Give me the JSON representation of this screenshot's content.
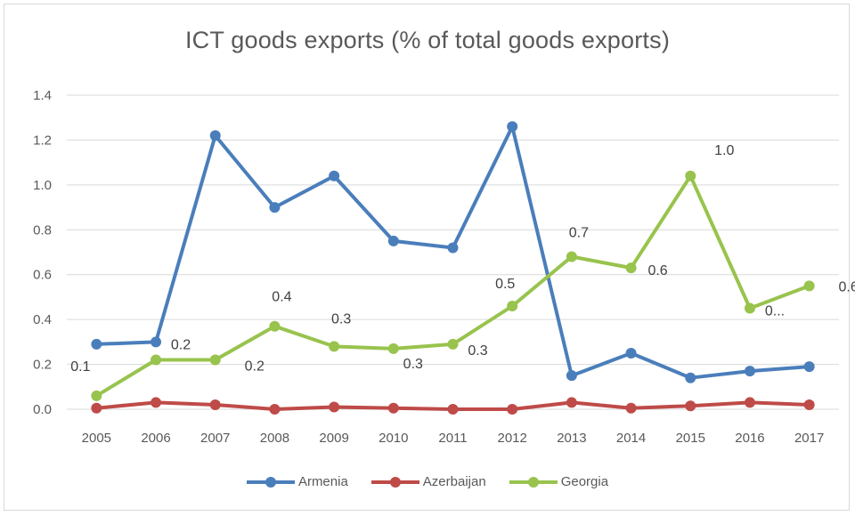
{
  "chart_data": {
    "type": "line",
    "title": "ICT goods exports (% of total goods exports)",
    "xlabel": "",
    "ylabel": "",
    "categories": [
      "2005",
      "2006",
      "2007",
      "2008",
      "2009",
      "2010",
      "2011",
      "2012",
      "2013",
      "2014",
      "2015",
      "2016",
      "2017"
    ],
    "ylim": [
      0,
      1.4
    ],
    "yticks": [
      "0.0",
      "0.2",
      "0.4",
      "0.6",
      "0.8",
      "1.0",
      "1.2",
      "1.4"
    ],
    "grid": true,
    "legend_position": "bottom",
    "series": [
      {
        "name": "Armenia",
        "color": "#4a7ebb",
        "values": [
          0.29,
          0.3,
          1.22,
          0.9,
          1.04,
          0.75,
          0.72,
          1.26,
          0.15,
          0.25,
          0.14,
          0.17,
          0.19
        ],
        "labels": [
          "",
          "",
          "",
          "",
          "",
          "",
          "",
          "",
          "",
          "",
          "",
          "",
          ""
        ]
      },
      {
        "name": "Azerbaijan",
        "color": "#be4b48",
        "values": [
          0.005,
          0.03,
          0.02,
          0.0,
          0.01,
          0.005,
          0.0,
          0.0,
          0.03,
          0.005,
          0.015,
          0.03,
          0.02
        ],
        "labels": [
          "",
          "",
          "",
          "",
          "",
          "",
          "",
          "",
          "",
          "",
          "",
          "",
          ""
        ]
      },
      {
        "name": "Georgia",
        "color": "#98c34d",
        "values": [
          0.06,
          0.22,
          0.22,
          0.37,
          0.28,
          0.27,
          0.29,
          0.46,
          0.68,
          0.63,
          1.04,
          0.45,
          0.55
        ],
        "labels": [
          "0.1",
          "0.2",
          "0.2",
          "0.4",
          "0.3",
          "0.3",
          "0.3",
          "0.5",
          "0.7",
          "0.6",
          "1.0",
          "0...",
          "0.6"
        ]
      }
    ]
  }
}
